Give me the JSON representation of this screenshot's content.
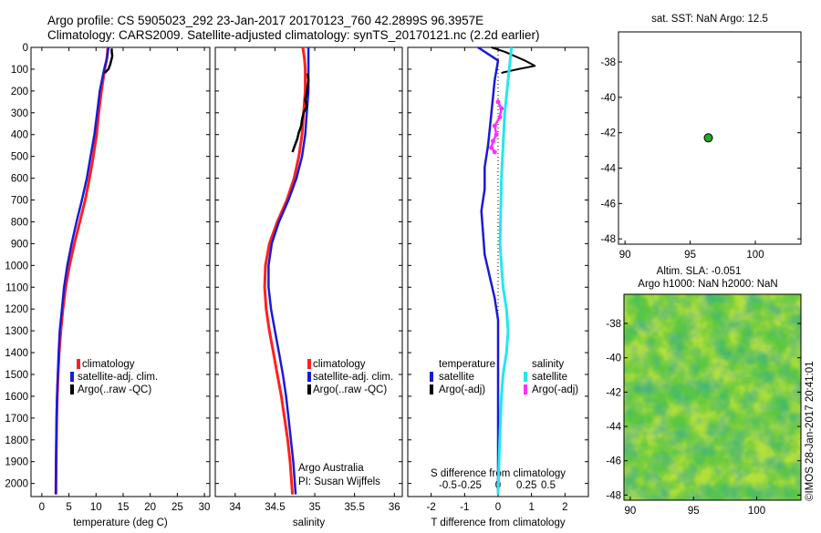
{
  "header": {
    "line1": "Argo profile: CS 5905023_292 23-Jan-2017 20170123_760 42.2899S 96.3957E",
    "line2": "Climatology: CARS2009. Satellite-adjusted climatology: synTS_20170121.nc (2.2d earlier)"
  },
  "credits": {
    "org": "Argo Australia",
    "pi": "PI: Susan Wijffels",
    "watermark": "©IMOS 28-Jan-2017 20:41:01"
  },
  "colors": {
    "climatology": "#ff2020",
    "satellite": "#1a1ad6",
    "argo": "#000000",
    "salinity_sat": "#22e8ee",
    "salinity_argo": "#ff30ff",
    "marker": "#22aa22"
  },
  "legend_profile": {
    "clim": "climatology",
    "sat": "satellite-adj. clim.",
    "argo": "Argo(..raw -QC)"
  },
  "legend_diff": {
    "temp_title": "temperature",
    "sal_title": "salinity",
    "sat": "satellite",
    "argo": "Argo(-adj)"
  },
  "chart_data": [
    {
      "type": "line",
      "xlabel": "temperature (deg C)",
      "xlim": [
        -2,
        31
      ],
      "ylim": [
        2060,
        0
      ],
      "yticks": [
        0,
        100,
        200,
        300,
        400,
        500,
        600,
        700,
        800,
        900,
        1000,
        1100,
        1200,
        1300,
        1400,
        1500,
        1600,
        1700,
        1800,
        1900,
        2000
      ],
      "xticks": [
        0,
        5,
        10,
        15,
        20,
        25,
        30
      ],
      "series": [
        {
          "name": "climatology",
          "x": [
            12.2,
            12.0,
            11.6,
            11.0,
            10.5,
            10.1,
            9.5,
            8.8,
            8.0,
            7.0,
            6.0,
            5.1,
            4.4,
            3.9,
            3.5,
            3.2,
            3.0,
            2.85,
            2.75,
            2.7,
            2.65,
            2.6
          ],
          "y": [
            0,
            50,
            100,
            200,
            300,
            400,
            500,
            600,
            700,
            800,
            900,
            1000,
            1100,
            1200,
            1300,
            1400,
            1500,
            1600,
            1700,
            1800,
            1900,
            2050
          ]
        },
        {
          "name": "satellite-adj. clim.",
          "x": [
            12.3,
            12.0,
            11.5,
            10.7,
            10.2,
            9.7,
            9.0,
            8.3,
            7.4,
            6.4,
            5.5,
            4.7,
            4.1,
            3.7,
            3.3,
            3.1,
            2.95,
            2.8,
            2.72,
            2.66,
            2.62,
            2.58
          ],
          "y": [
            0,
            50,
            100,
            200,
            300,
            400,
            500,
            600,
            700,
            800,
            900,
            1000,
            1100,
            1200,
            1300,
            1400,
            1500,
            1600,
            1700,
            1800,
            1900,
            2050
          ]
        },
        {
          "name": "Argo(..raw -QC)",
          "x": [
            12.9,
            12.9,
            13.0,
            12.8,
            12.6,
            12.3,
            11.9,
            11.6
          ],
          "y": [
            5,
            20,
            40,
            60,
            80,
            100,
            110,
            118
          ]
        }
      ]
    },
    {
      "type": "line",
      "xlabel": "salinity",
      "xlim": [
        33.75,
        36.1
      ],
      "ylim": [
        2060,
        0
      ],
      "xticks": [
        34,
        34.5,
        35,
        35.5,
        36
      ],
      "series": [
        {
          "name": "climatology",
          "x": [
            34.85,
            34.87,
            34.88,
            34.88,
            34.86,
            34.84,
            34.8,
            34.74,
            34.65,
            34.53,
            34.43,
            34.38,
            34.37,
            34.39,
            34.43,
            34.48,
            34.53,
            34.58,
            34.62,
            34.66,
            34.69,
            34.72
          ],
          "y": [
            0,
            50,
            100,
            200,
            300,
            400,
            500,
            600,
            700,
            800,
            900,
            1000,
            1100,
            1200,
            1300,
            1400,
            1500,
            1600,
            1700,
            1800,
            1900,
            2050
          ]
        },
        {
          "name": "satellite-adj. clim.",
          "x": [
            34.92,
            34.92,
            34.92,
            34.92,
            34.9,
            34.88,
            34.84,
            34.77,
            34.67,
            34.55,
            34.46,
            34.42,
            34.42,
            34.45,
            34.5,
            34.55,
            34.6,
            34.64,
            34.67,
            34.7,
            34.73,
            34.76
          ],
          "y": [
            0,
            50,
            100,
            200,
            300,
            400,
            500,
            600,
            700,
            800,
            900,
            1000,
            1100,
            1200,
            1300,
            1400,
            1500,
            1600,
            1700,
            1800,
            1900,
            2050
          ]
        },
        {
          "name": "Argo(..raw -QC)",
          "x": [
            34.91,
            34.92,
            34.91,
            34.9,
            34.88,
            34.9,
            34.86,
            34.84,
            34.83,
            34.8,
            34.78,
            34.75,
            34.72
          ],
          "y": [
            120,
            150,
            180,
            210,
            240,
            270,
            300,
            330,
            360,
            390,
            420,
            450,
            480
          ]
        }
      ]
    },
    {
      "type": "line",
      "xlabel": "T difference from climatology",
      "x2label": "S difference from climatology",
      "xlim": [
        -2.7,
        2.7
      ],
      "ylim": [
        2060,
        0
      ],
      "xticks": [
        -2,
        -1,
        0,
        1,
        2
      ],
      "x2ticks": [
        "-0.5",
        "-0.25",
        "0",
        "0.25",
        "0.5"
      ],
      "series": [
        {
          "name": "temperature satellite",
          "x": [
            -0.6,
            0.0,
            -0.1,
            -0.2,
            -0.3,
            -0.4,
            -0.4,
            -0.5,
            -0.45,
            -0.4,
            -0.25,
            -0.1,
            0.0,
            0.0,
            0.0,
            0.0,
            0.0,
            0.0,
            0.0
          ],
          "y": [
            0,
            60,
            150,
            300,
            450,
            550,
            650,
            750,
            850,
            950,
            1050,
            1150,
            1250,
            1400,
            1550,
            1700,
            1850,
            1950,
            2050
          ]
        },
        {
          "name": "temperature Argo(-adj)",
          "x": [
            -0.2,
            0.2,
            0.5,
            0.8,
            1.1,
            0.6,
            0.3,
            0.15,
            0.1
          ],
          "y": [
            0,
            20,
            40,
            60,
            85,
            100,
            110,
            115,
            118
          ]
        },
        {
          "name": "salinity satellite",
          "x": [
            0.4,
            0.3,
            0.2,
            0.15,
            0.1,
            0.08,
            0.06,
            0.1,
            0.15,
            0.25,
            0.3,
            0.25,
            0.15,
            0.1,
            0.05,
            0.0
          ],
          "y": [
            0,
            150,
            300,
            450,
            600,
            750,
            900,
            1000,
            1100,
            1200,
            1300,
            1400,
            1500,
            1600,
            1800,
            2050
          ]
        },
        {
          "name": "salinity Argo(-adj)",
          "x": [
            0.0,
            0.1,
            0.05,
            -0.1,
            -0.05,
            -0.15,
            -0.2,
            -0.1
          ],
          "y": [
            250,
            280,
            320,
            360,
            400,
            430,
            460,
            480
          ]
        }
      ]
    },
    {
      "type": "scatter",
      "title": "sat. SST: NaN Argo: 12.5",
      "xlim": [
        89.5,
        103.5
      ],
      "ylim": [
        -48.3,
        -36.3
      ],
      "xticks": [
        90,
        95,
        100
      ],
      "yticks": [
        -38,
        -40,
        -42,
        -44,
        -46,
        -48
      ],
      "points": [
        {
          "x": 96.3957,
          "y": -42.2899
        }
      ]
    },
    {
      "type": "heatmap",
      "title": "Altim. SLA: -0.051",
      "subtitle": "Argo h1000: NaN h2000: NaN",
      "xlim": [
        89.5,
        103.5
      ],
      "ylim": [
        -48.3,
        -36.3
      ],
      "xticks": [
        90,
        95,
        100
      ],
      "yticks": [
        -38,
        -40,
        -42,
        -44,
        -46,
        -48
      ]
    }
  ]
}
